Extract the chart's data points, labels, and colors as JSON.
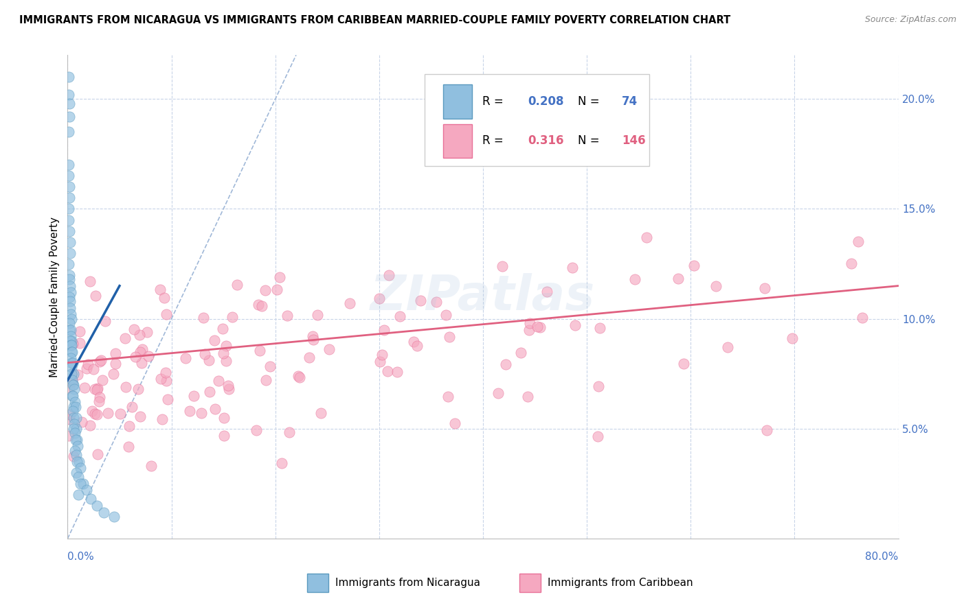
{
  "title": "IMMIGRANTS FROM NICARAGUA VS IMMIGRANTS FROM CARIBBEAN MARRIED-COUPLE FAMILY POVERTY CORRELATION CHART",
  "source": "Source: ZipAtlas.com",
  "ylabel": "Married-Couple Family Poverty",
  "xlim": [
    0.0,
    80.0
  ],
  "ylim": [
    0.0,
    22.0
  ],
  "yticks": [
    5.0,
    10.0,
    15.0,
    20.0
  ],
  "xtick_left": "0.0%",
  "xtick_right": "80.0%",
  "nicaragua_color": "#90bfdf",
  "caribbean_color": "#f5a8c0",
  "nicaragua_edge": "#5b9abf",
  "caribbean_edge": "#e87098",
  "nicaragua_line_color": "#2060a8",
  "caribbean_line_color": "#e06080",
  "diagonal_color": "#a0b8d8",
  "label_color": "#4472c4",
  "watermark": "ZIPatlas",
  "nicaragua_R": 0.208,
  "nicaragua_N": 74,
  "caribbean_R": 0.316,
  "caribbean_N": 146,
  "legend_label1": "Immigrants from Nicaragua",
  "legend_label2": "Immigrants from Caribbean",
  "nicaragua_line_x0": 0.0,
  "nicaragua_line_y0": 7.2,
  "nicaragua_line_x1": 5.0,
  "nicaragua_line_y1": 11.5,
  "caribbean_line_x0": 0.0,
  "caribbean_line_y0": 8.0,
  "caribbean_line_x1": 80.0,
  "caribbean_line_y1": 11.5,
  "diag_x0": 0.0,
  "diag_y0": 0.0,
  "diag_x1": 22.0,
  "diag_y1": 22.0
}
